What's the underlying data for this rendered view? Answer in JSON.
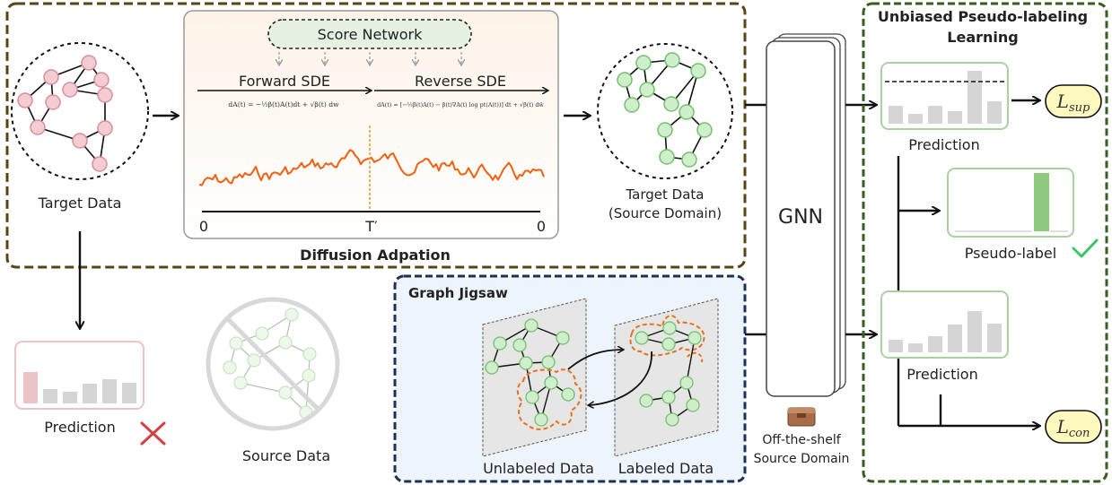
{
  "left": {
    "target_data_label": "Target Data",
    "prediction_label": "Prediction",
    "source_data_label": "Source Data"
  },
  "diffusion": {
    "title": "Diffusion Adpation",
    "score_network": "Score Network",
    "forward_sde": "Forward SDE",
    "reverse_sde": "Reverse SDE",
    "forward_eq": "dA(t) = −½β(t)A(t)dt + √β(t) dw",
    "reverse_eq": "dA(t) = [−½β(t)A(t) − β(t)∇A(t) log pt(A(t))] dt + √β(t) dw̄",
    "axis_start": "0",
    "axis_mid": "T′",
    "axis_end": "0"
  },
  "target_source": {
    "line1": "Target Data",
    "line2": "(Source Domain)"
  },
  "gnn": {
    "label": "GNN",
    "caption_line1": "Off-the-shelf",
    "caption_line2": "Source Domain"
  },
  "jigsaw": {
    "title": "Graph Jigsaw",
    "unlabeled": "Unlabeled Data",
    "labeled": "Labeled Data"
  },
  "unbiased": {
    "title_line1": "Unbiased Pseudo-labeling",
    "title_line2": "Learning",
    "prediction_top": "Prediction",
    "pseudo_label": "Pseudo-label",
    "prediction_bottom": "Prediction",
    "loss_sup_main": "L",
    "loss_sup_sub": "sup",
    "loss_con_main": "L",
    "loss_con_sub": "con"
  },
  "colors": {
    "pink_node": "#f4cdd2",
    "pink_stroke": "#d98d99",
    "green_node": "#cfeecb",
    "green_stroke": "#74bf6c",
    "green_bar": "#8dc97e",
    "grey_bar": "#d5d5d5",
    "pink_bar": "#ebc3c8",
    "box_brown": "#5a4416",
    "box_green": "#355e1f",
    "box_navy": "#1d3157",
    "cross_red": "#d64040",
    "check_green": "#3dc46b",
    "loss_fill": "#fdf8bd",
    "orange_dash": "#e8721c"
  }
}
